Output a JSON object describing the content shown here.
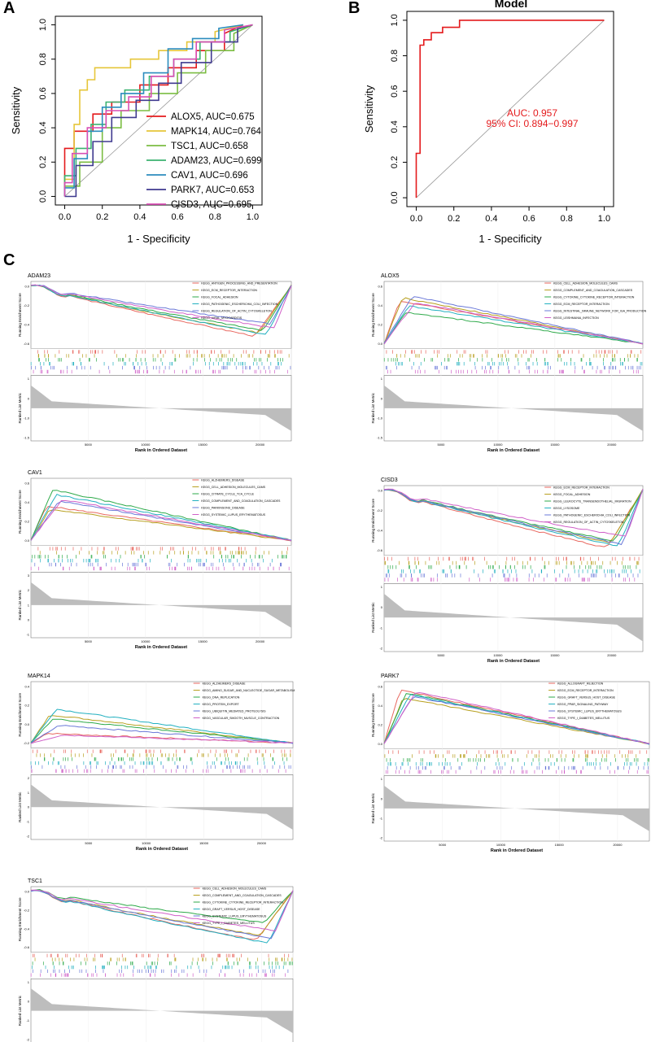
{
  "panel_labels": {
    "a": "A",
    "b": "B",
    "c": "C"
  },
  "chart_data": [
    {
      "id": "roc-a",
      "type": "line",
      "title": "",
      "xlabel": "1 - Specificity",
      "ylabel": "Sensitivity",
      "xlim": [
        -0.05,
        1.05
      ],
      "ylim": [
        -0.05,
        1.05
      ],
      "xticks": [
        "0.0",
        "0.2",
        "0.4",
        "0.6",
        "0.8",
        "1.0"
      ],
      "yticks": [
        "0.0",
        "0.2",
        "0.4",
        "0.6",
        "0.8",
        "1.0"
      ],
      "xtick_values": [
        0,
        0.2,
        0.4,
        0.6,
        0.8,
        1.0
      ],
      "ytick_values": [
        0,
        0.2,
        0.4,
        0.6,
        0.8,
        1.0
      ],
      "legend_position": "bottom-right",
      "series": [
        {
          "name": "ALOX5",
          "legend": "ALOX5, AUC=0.675",
          "color": "#e41a1c",
          "x": [
            0,
            0,
            0.05,
            0.05,
            0.15,
            0.15,
            0.25,
            0.25,
            0.4,
            0.4,
            0.55,
            0.55,
            0.7,
            0.7,
            0.85,
            0.85,
            0.95
          ],
          "y": [
            0,
            0.28,
            0.28,
            0.38,
            0.38,
            0.48,
            0.48,
            0.55,
            0.55,
            0.65,
            0.65,
            0.75,
            0.75,
            0.85,
            0.85,
            0.95,
            1.0
          ]
        },
        {
          "name": "MAPK14",
          "legend": "MAPK14, AUC=0.764",
          "color": "#e6c63a",
          "x": [
            0,
            0,
            0.05,
            0.05,
            0.08,
            0.08,
            0.12,
            0.12,
            0.16,
            0.16,
            0.35,
            0.35,
            0.5,
            0.5,
            0.65,
            0.65,
            0.8,
            0.8,
            0.95
          ],
          "y": [
            0,
            0.1,
            0.1,
            0.42,
            0.42,
            0.62,
            0.62,
            0.68,
            0.68,
            0.75,
            0.75,
            0.8,
            0.8,
            0.85,
            0.85,
            0.9,
            0.9,
            0.96,
            1.0
          ]
        },
        {
          "name": "TSC1",
          "legend": "TSC1, AUC=0.658",
          "color": "#7bbd42",
          "x": [
            0,
            0,
            0.08,
            0.08,
            0.2,
            0.2,
            0.3,
            0.3,
            0.45,
            0.45,
            0.6,
            0.6,
            0.75,
            0.75,
            0.9,
            0.9,
            1.0
          ],
          "y": [
            0,
            0.06,
            0.06,
            0.2,
            0.2,
            0.4,
            0.4,
            0.5,
            0.5,
            0.6,
            0.6,
            0.72,
            0.72,
            0.85,
            0.85,
            0.95,
            1.0
          ]
        },
        {
          "name": "ADAM23",
          "legend": "ADAM23, AUC=0.699",
          "color": "#3cb371",
          "x": [
            0,
            0,
            0.06,
            0.06,
            0.14,
            0.14,
            0.22,
            0.22,
            0.32,
            0.32,
            0.45,
            0.45,
            0.58,
            0.58,
            0.72,
            0.72,
            0.88,
            0.88,
            1.0
          ],
          "y": [
            0,
            0.12,
            0.12,
            0.28,
            0.28,
            0.42,
            0.42,
            0.55,
            0.55,
            0.62,
            0.62,
            0.7,
            0.7,
            0.8,
            0.8,
            0.9,
            0.9,
            0.96,
            1.0
          ]
        },
        {
          "name": "CAV1",
          "legend": "CAV1, AUC=0.696",
          "color": "#2b8cbe",
          "x": [
            0,
            0,
            0.05,
            0.05,
            0.12,
            0.12,
            0.2,
            0.2,
            0.3,
            0.3,
            0.42,
            0.42,
            0.55,
            0.55,
            0.68,
            0.68,
            0.82,
            0.82,
            0.95
          ],
          "y": [
            0,
            0.05,
            0.05,
            0.22,
            0.22,
            0.38,
            0.38,
            0.52,
            0.52,
            0.6,
            0.6,
            0.72,
            0.72,
            0.86,
            0.86,
            0.92,
            0.92,
            0.98,
            1.0
          ]
        },
        {
          "name": "PARK7",
          "legend": "PARK7, AUC=0.653",
          "color": "#3f3a8f",
          "x": [
            0,
            0,
            0.06,
            0.06,
            0.15,
            0.15,
            0.25,
            0.25,
            0.38,
            0.38,
            0.5,
            0.5,
            0.62,
            0.62,
            0.78,
            0.78,
            0.92,
            0.92,
            1.0
          ],
          "y": [
            0,
            0.0,
            0.0,
            0.18,
            0.18,
            0.32,
            0.32,
            0.46,
            0.46,
            0.56,
            0.56,
            0.66,
            0.66,
            0.78,
            0.78,
            0.9,
            0.9,
            0.98,
            1.0
          ]
        },
        {
          "name": "CISD3",
          "legend": "CISD3, AUC=0.695",
          "color": "#d94fb5",
          "x": [
            0,
            0,
            0.04,
            0.04,
            0.12,
            0.12,
            0.22,
            0.22,
            0.34,
            0.34,
            0.46,
            0.46,
            0.58,
            0.58,
            0.7,
            0.7,
            0.85,
            0.85,
            1.0
          ],
          "y": [
            0,
            0.08,
            0.08,
            0.25,
            0.25,
            0.4,
            0.4,
            0.5,
            0.5,
            0.58,
            0.58,
            0.7,
            0.7,
            0.8,
            0.8,
            0.9,
            0.9,
            0.97,
            1.0
          ]
        }
      ]
    },
    {
      "id": "roc-b",
      "type": "line",
      "title": "Model",
      "xlabel": "1 - Specificity",
      "ylabel": "Sensitivity",
      "xlim": [
        -0.05,
        1.05
      ],
      "ylim": [
        -0.05,
        1.05
      ],
      "xticks": [
        "0.0",
        "0.2",
        "0.4",
        "0.6",
        "0.8",
        "1.0"
      ],
      "yticks": [
        "0.0",
        "0.2",
        "0.4",
        "0.6",
        "0.8",
        "1.0"
      ],
      "xtick_values": [
        0,
        0.2,
        0.4,
        0.6,
        0.8,
        1.0
      ],
      "ytick_values": [
        0,
        0.2,
        0.4,
        0.6,
        0.8,
        1.0
      ],
      "annotations": [
        "AUC: 0.957",
        "95% CI: 0.894−0.997"
      ],
      "series": [
        {
          "name": "Model",
          "color": "#e41a1c",
          "x": [
            0,
            0,
            0.02,
            0.02,
            0.04,
            0.04,
            0.08,
            0.08,
            0.14,
            0.14,
            0.23,
            0.23,
            1.0
          ],
          "y": [
            0,
            0.25,
            0.25,
            0.86,
            0.86,
            0.89,
            0.89,
            0.93,
            0.93,
            0.96,
            0.96,
            1.0,
            1.0
          ]
        }
      ]
    }
  ],
  "gsea_common": {
    "ylabel_top": "Running Enrichment Score",
    "ylabel_bottom": "Ranked List Metric",
    "xlabel": "Rank in Ordered Dataset",
    "xticks": [
      "5000",
      "10000",
      "15000",
      "20000"
    ],
    "colors": [
      "#e8675f",
      "#b8a020",
      "#2eaa4a",
      "#22b0c0",
      "#6a78d8",
      "#d060c8"
    ]
  },
  "gsea": [
    {
      "gene": "ADAM23",
      "direction": "down",
      "yticks": [
        "0.0",
        "-0.2",
        "-0.4",
        "-0.6"
      ],
      "metric_ticks": [
        "1",
        "0",
        "-1.0",
        "-1.5"
      ],
      "terms": [
        "KEGG_ANTIGEN_PROCESSING_AND_PRESENTATION",
        "KEGG_ECM_RECEPTOR_INTERACTION",
        "KEGG_FOCAL_ADHESION",
        "KEGG_PATHOGENIC_ESCHERICHIA_COLI_INFECTION",
        "KEGG_REGULATION_OF_ACTIN_CYTOSKELETON",
        "KEGG_VIRAL_MYOCARDITIS"
      ],
      "min_es": [
        -0.62,
        -0.58,
        -0.55,
        -0.6,
        -0.47,
        -0.52
      ]
    },
    {
      "gene": "ALOX5",
      "direction": "up",
      "yticks": [
        "0.6",
        "0.4",
        "0.2",
        "0.0"
      ],
      "metric_ticks": [
        "1",
        "0",
        "-1.0",
        "-1.5"
      ],
      "terms": [
        "KEGG_CELL_ADHESION_MOLECULES_CAMS",
        "KEGG_COMPLEMENT_AND_COAGULATION_CASCADES",
        "KEGG_CYTOKINE_CYTOKINE_RECEPTOR_INTERACTION",
        "KEGG_ECM_RECEPTOR_INTERACTION",
        "KEGG_INTESTINAL_IMMUNE_NETWORK_FOR_IGA_PRODUCTION",
        "KEGG_LEISHMANIA_INFECTION"
      ],
      "max_es": [
        0.52,
        0.56,
        0.38,
        0.46,
        0.58,
        0.5
      ]
    },
    {
      "gene": "CAV1",
      "direction": "up",
      "yticks": [
        "0.6",
        "0.4",
        "0.2",
        "0.0"
      ],
      "metric_ticks": [
        "3",
        "2",
        "1",
        "0",
        "-1"
      ],
      "terms": [
        "KEGG_ALZHEIMERS_DISEASE",
        "KEGG_CELL_ADHESION_MOLECULES_CAMS",
        "KEGG_CITRATE_CYCLE_TCA_CYCLE",
        "KEGG_COMPLEMENT_AND_COAGULATION_CASCADES",
        "KEGG_PARKINSONS_DISEASE",
        "KEGG_SYSTEMIC_LUPUS_ERYTHEMATOSUS"
      ],
      "max_es": [
        0.42,
        0.38,
        0.62,
        0.56,
        0.48,
        0.5
      ]
    },
    {
      "gene": "CISD3",
      "direction": "down",
      "yticks": [
        "0.0",
        "-0.2",
        "-0.4",
        "-0.6"
      ],
      "metric_ticks": [
        "1",
        "0",
        "-1",
        "-2"
      ],
      "terms": [
        "KEGG_ECM_RECEPTOR_INTERACTION",
        "KEGG_FOCAL_ADHESION",
        "KEGG_LEUKOCYTE_TRANSENDOTHELIAL_MIGRATION",
        "KEGG_LYSOSOME",
        "KEGG_PATHOGENIC_ESCHERICHIA_COLI_INFECTION",
        "KEGG_REGULATION_OF_ACTIN_CYTOSKELETON"
      ],
      "min_es": [
        -0.68,
        -0.62,
        -0.6,
        -0.66,
        -0.64,
        -0.55
      ]
    },
    {
      "gene": "MAPK14",
      "direction": "up",
      "yticks": [
        "0.4",
        "0.2",
        "0.0",
        "-0.2"
      ],
      "metric_ticks": [
        "2",
        "1",
        "0",
        "-1",
        "-2"
      ],
      "terms": [
        "KEGG_ALZHEIMERS_DISEASE",
        "KEGG_AMINO_SUGAR_AND_NUCLEOTIDE_SUGAR_METABOLISM",
        "KEGG_DNA_REPLICATION",
        "KEGG_PROTEIN_EXPORT",
        "KEGG_UBIQUITIN_MEDIATED_PROTEOLYSIS",
        "KEGG_VASCULAR_SMOOTH_MUSCLE_CONTRACTION"
      ],
      "max_es": [
        0.12,
        0.35,
        0.3,
        0.42,
        0.22,
        0.1
      ]
    },
    {
      "gene": "PARK7",
      "direction": "up",
      "yticks": [
        "0.6",
        "0.4",
        "0.2",
        "0.0"
      ],
      "metric_ticks": [
        "1",
        "0",
        "-1",
        "-2"
      ],
      "terms": [
        "KEGG_ALLOGRAFT_REJECTION",
        "KEGG_ECM_RECEPTOR_INTERACTION",
        "KEGG_GRAFT_VERSUS_HOST_DISEASE",
        "KEGG_PPAR_SIGNALING_PATHWAY",
        "KEGG_SYSTEMIC_LUPUS_ERYTHEMATOSUS",
        "KEGG_TYPE_I_DIABETES_MELLITUS"
      ],
      "max_es": [
        0.66,
        0.56,
        0.62,
        0.6,
        0.58,
        0.64
      ]
    },
    {
      "gene": "TSC1",
      "direction": "down",
      "yticks": [
        "0.0",
        "-0.2",
        "-0.4",
        "-0.6"
      ],
      "metric_ticks": [
        "1",
        "0",
        "-1",
        "-2"
      ],
      "terms": [
        "KEGG_CELL_ADHESION_MOLECULES_CAMS",
        "KEGG_COMPLEMENT_AND_COAGULATION_CASCADES",
        "KEGG_CYTOKINE_CYTOKINE_RECEPTOR_INTERACTION",
        "KEGG_GRAFT_VERSUS_HOST_DISEASE",
        "KEGG_SYSTEMIC_LUPUS_ERYTHEMATOSUS",
        "KEGG_TYPE_I_DIABETES_MELLITUS"
      ],
      "min_es": [
        -0.62,
        -0.56,
        -0.4,
        -0.66,
        -0.6,
        -0.5
      ]
    }
  ]
}
